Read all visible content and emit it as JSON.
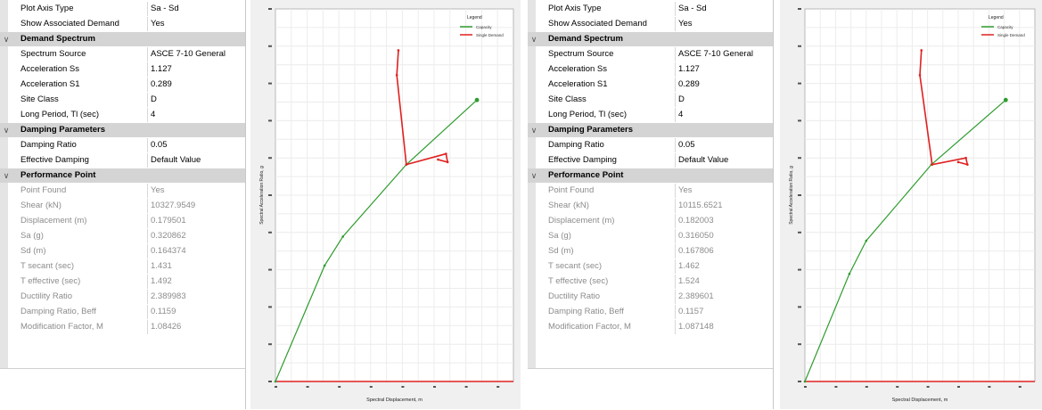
{
  "panels": [
    {
      "rows": [
        {
          "kind": "prop",
          "name": "Plot Axis Type",
          "value": "Sa - Sd"
        },
        {
          "kind": "prop",
          "name": "Show Associated Demand",
          "value": "Yes"
        },
        {
          "kind": "cat",
          "name": "Demand Spectrum"
        },
        {
          "kind": "prop",
          "name": "Spectrum Source",
          "value": "ASCE 7-10 General"
        },
        {
          "kind": "prop",
          "name": "Acceleration Ss",
          "value": "1.127"
        },
        {
          "kind": "prop",
          "name": "Acceleration S1",
          "value": "0.289"
        },
        {
          "kind": "prop",
          "name": "Site Class",
          "value": "D"
        },
        {
          "kind": "prop",
          "name": "Long Period, Tl (sec)",
          "value": "4"
        },
        {
          "kind": "cat",
          "name": "Damping Parameters"
        },
        {
          "kind": "prop",
          "name": "Damping Ratio",
          "value": "0.05"
        },
        {
          "kind": "prop",
          "name": "Effective Damping",
          "value": "Default Value"
        },
        {
          "kind": "cat",
          "name": "Performance Point"
        },
        {
          "kind": "ro",
          "name": "Point Found",
          "value": "Yes"
        },
        {
          "kind": "ro",
          "name": "Shear (kN)",
          "value": "10327.9549"
        },
        {
          "kind": "ro",
          "name": "Displacement (m)",
          "value": "0.179501"
        },
        {
          "kind": "ro",
          "name": "Sa (g)",
          "value": "0.320862"
        },
        {
          "kind": "ro",
          "name": "Sd (m)",
          "value": "0.164374"
        },
        {
          "kind": "ro",
          "name": "T secant (sec)",
          "value": "1.431"
        },
        {
          "kind": "ro",
          "name": "T effective (sec)",
          "value": "1.492"
        },
        {
          "kind": "ro",
          "name": "Ductility Ratio",
          "value": "2.389983"
        },
        {
          "kind": "ro",
          "name": "Damping Ratio, Beff",
          "value": "0.1159"
        },
        {
          "kind": "ro",
          "name": "Modification Factor, M",
          "value": "1.08426"
        }
      ],
      "chart_data": {
        "type": "line",
        "xlabel": "Spectral Displacement, m",
        "ylabel": "Spectral Acceleration Ratio, g",
        "legend": {
          "title": "Legend",
          "placement": "top-right",
          "entries": [
            "Capacity",
            "Single Demand"
          ]
        },
        "grid": true,
        "series": [
          {
            "name": "Capacity",
            "color": "#2e9c2e",
            "x": [
              0,
              0.062,
              0.085,
              0.165,
              0.254
            ],
            "y": [
              0,
              0.14,
              0.175,
              0.262,
              0.34
            ]
          },
          {
            "name": "Single Demand",
            "color": "#e02020",
            "x": [
              0.155,
              0.153,
              0.165,
              0.215,
              0.217,
              0.205
            ],
            "y": [
              0.4,
              0.37,
              0.262,
              0.275,
              0.265,
              0.268
            ]
          }
        ]
      }
    },
    {
      "rows": [
        {
          "kind": "prop",
          "name": "Plot Axis Type",
          "value": "Sa - Sd"
        },
        {
          "kind": "prop",
          "name": "Show Associated Demand",
          "value": "Yes"
        },
        {
          "kind": "cat",
          "name": "Demand Spectrum"
        },
        {
          "kind": "prop",
          "name": "Spectrum Source",
          "value": "ASCE 7-10 General"
        },
        {
          "kind": "prop",
          "name": "Acceleration Ss",
          "value": "1.127"
        },
        {
          "kind": "prop",
          "name": "Acceleration S1",
          "value": "0.289"
        },
        {
          "kind": "prop",
          "name": "Site Class",
          "value": "D"
        },
        {
          "kind": "prop",
          "name": "Long Period, Tl (sec)",
          "value": "4"
        },
        {
          "kind": "cat",
          "name": "Damping Parameters"
        },
        {
          "kind": "prop",
          "name": "Damping Ratio",
          "value": "0.05"
        },
        {
          "kind": "prop",
          "name": "Effective Damping",
          "value": "Default Value"
        },
        {
          "kind": "cat",
          "name": "Performance Point"
        },
        {
          "kind": "ro",
          "name": "Point Found",
          "value": "Yes"
        },
        {
          "kind": "ro",
          "name": "Shear (kN)",
          "value": "10115.6521"
        },
        {
          "kind": "ro",
          "name": "Displacement (m)",
          "value": "0.182003"
        },
        {
          "kind": "ro",
          "name": "Sa (g)",
          "value": "0.316050"
        },
        {
          "kind": "ro",
          "name": "Sd (m)",
          "value": "0.167806"
        },
        {
          "kind": "ro",
          "name": "T secant (sec)",
          "value": "1.462"
        },
        {
          "kind": "ro",
          "name": "T effective (sec)",
          "value": "1.524"
        },
        {
          "kind": "ro",
          "name": "Ductility Ratio",
          "value": "2.389601"
        },
        {
          "kind": "ro",
          "name": "Damping Ratio, Beff",
          "value": "0.1157"
        },
        {
          "kind": "ro",
          "name": "Modification Factor, M",
          "value": "1.087148"
        }
      ],
      "chart_data": {
        "type": "line",
        "xlabel": "Spectral Displacement, m",
        "ylabel": "Spectral Acceleration Ratio, g",
        "legend": {
          "title": "Legend",
          "placement": "top-right",
          "entries": [
            "Capacity",
            "Single Demand"
          ]
        },
        "grid": true,
        "series": [
          {
            "name": "Capacity",
            "color": "#2e9c2e",
            "x": [
              0,
              0.058,
              0.08,
              0.165,
              0.262
            ],
            "y": [
              0,
              0.13,
              0.17,
              0.262,
              0.34
            ]
          },
          {
            "name": "Single Demand",
            "color": "#e02020",
            "x": [
              0.152,
              0.15,
              0.166,
              0.21,
              0.212,
              0.2
            ],
            "y": [
              0.4,
              0.37,
              0.262,
              0.27,
              0.262,
              0.265
            ]
          }
        ]
      }
    }
  ]
}
